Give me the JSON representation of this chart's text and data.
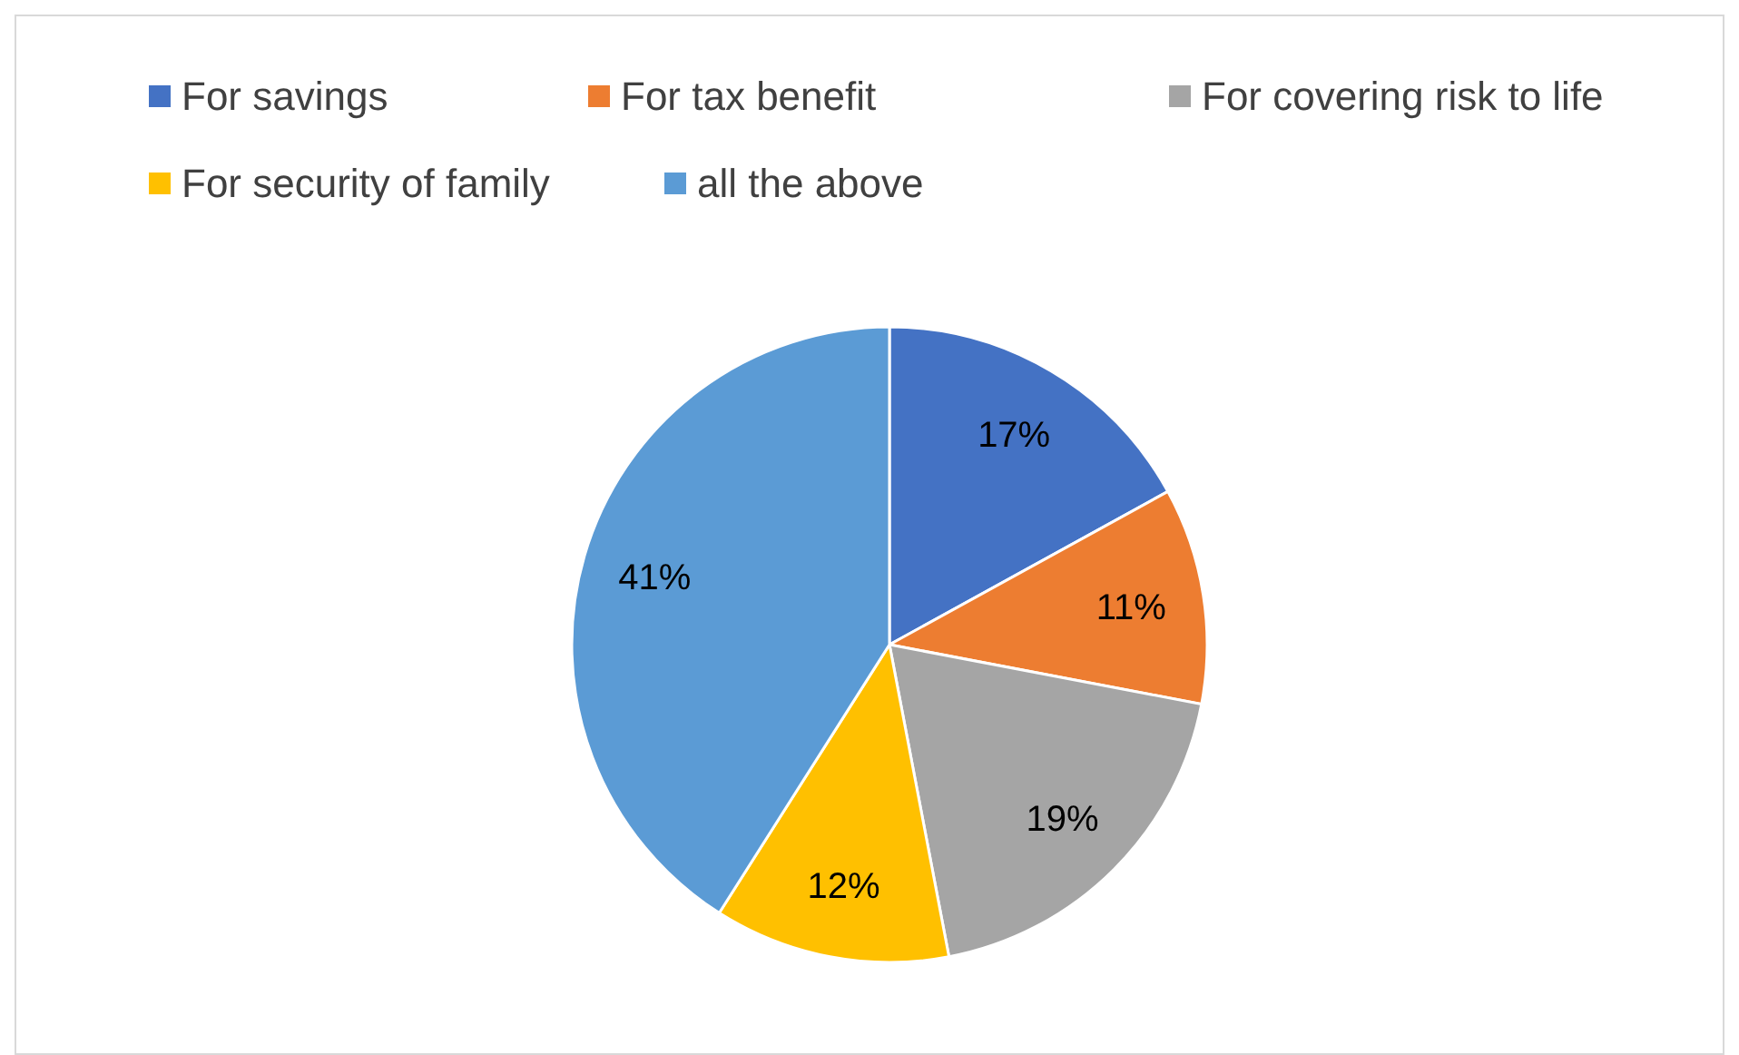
{
  "chart_data": {
    "type": "pie",
    "categories": [
      "For savings",
      "For tax benefit",
      "For covering risk to life",
      "For security of family",
      "all the above"
    ],
    "values": [
      17,
      11,
      19,
      12,
      41
    ],
    "colors": [
      "#4472c4",
      "#ed7d31",
      "#a5a5a5",
      "#ffc000",
      "#5b9bd5"
    ],
    "value_labels": [
      "17%",
      "11%",
      "19%",
      "12%",
      "41%"
    ],
    "legend": "top"
  }
}
